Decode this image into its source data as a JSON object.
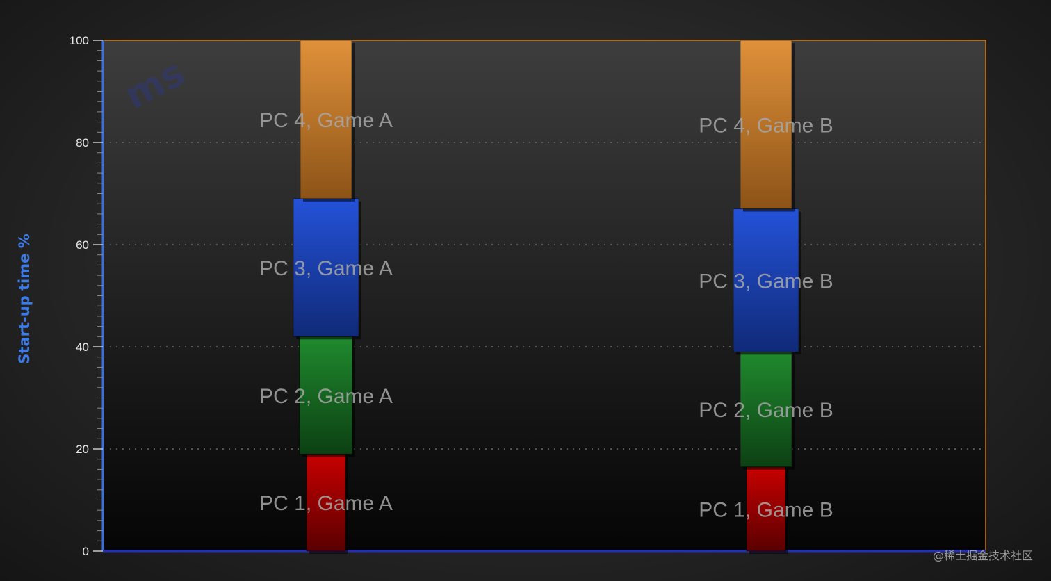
{
  "chart_data": {
    "type": "bar",
    "stacked": true,
    "ylabel": "Start-up time %",
    "ylim": [
      0,
      100
    ],
    "yticks": [
      0,
      20,
      40,
      60,
      80,
      100
    ],
    "grid": true,
    "categories": [
      "Game A",
      "Game B"
    ],
    "series": [
      {
        "name": "PC 1",
        "color": "#b00000",
        "values": [
          19,
          16.5
        ]
      },
      {
        "name": "PC 2",
        "color": "#1b7a26",
        "values": [
          23,
          22.5
        ]
      },
      {
        "name": "PC 3",
        "color": "#1f45c8",
        "values": [
          27,
          28
        ]
      },
      {
        "name": "PC 4",
        "color": "#d9882e",
        "values": [
          31,
          33
        ]
      }
    ],
    "labels": [
      [
        "PC 1, Game A",
        "PC 1, Game B"
      ],
      [
        "PC 2, Game A",
        "PC 2, Game B"
      ],
      [
        "PC 3, Game A",
        "PC 3, Game B"
      ],
      [
        "PC 4, Game A",
        "PC 4, Game B"
      ]
    ]
  },
  "watermark": {
    "logo_text": "ms",
    "credit": "@稀土掘金技术社区"
  }
}
